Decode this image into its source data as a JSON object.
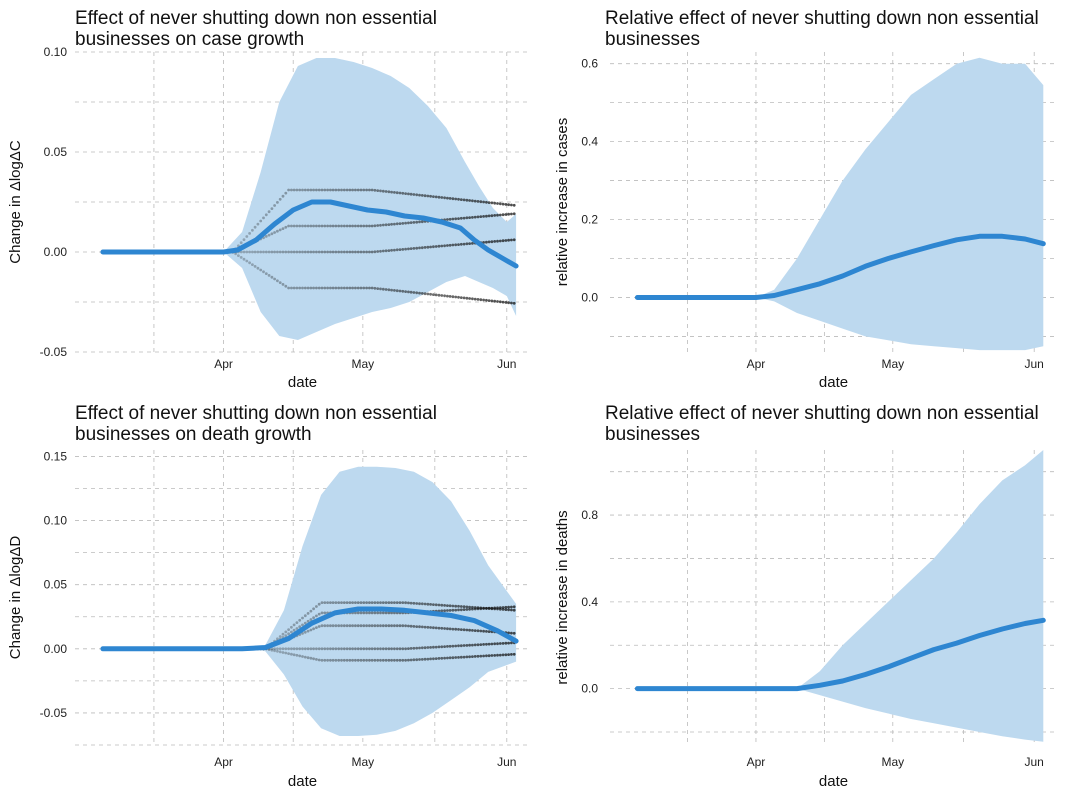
{
  "colors": {
    "band": "#bdd9ef",
    "line": "#2e86d1",
    "grid": "#bbbbbb",
    "dots": "#111111"
  },
  "chart_data": [
    {
      "type": "line",
      "title_lines": [
        "Effect of never shutting down non essential",
        "businesses on case growth"
      ],
      "xlabel": "date",
      "ylabel": "Change in ΔlogΔC",
      "xlim": [
        "2020-02-29",
        "2020-06-06"
      ],
      "ylim": [
        -0.05,
        0.1
      ],
      "yticks": [
        -0.05,
        0.0,
        0.05,
        0.1
      ],
      "ytick_labels": [
        "-0.05",
        "0.00",
        "0.05",
        "0.10"
      ],
      "xticks": [
        "2020-04-01",
        "2020-05-01",
        "2020-06-01"
      ],
      "xtick_labels": [
        "Apr",
        "May",
        "Jun"
      ],
      "grid": true,
      "series": [
        {
          "kind": "line",
          "x": [
            "2020-03-06",
            "2020-03-15",
            "2020-03-25",
            "2020-04-01",
            "2020-04-04",
            "2020-04-08",
            "2020-04-12",
            "2020-04-16",
            "2020-04-20",
            "2020-04-24",
            "2020-04-28",
            "2020-05-02",
            "2020-05-06",
            "2020-05-10",
            "2020-05-14",
            "2020-05-18",
            "2020-05-22",
            "2020-05-25",
            "2020-05-28",
            "2020-05-31",
            "2020-06-03"
          ],
          "y": [
            0,
            0,
            0,
            0,
            0.001,
            0.006,
            0.014,
            0.021,
            0.025,
            0.025,
            0.023,
            0.021,
            0.02,
            0.018,
            0.017,
            0.015,
            0.012,
            0.006,
            0.001,
            -0.003,
            -0.007
          ]
        },
        {
          "kind": "band",
          "x": [
            "2020-03-06",
            "2020-03-25",
            "2020-04-01",
            "2020-04-05",
            "2020-04-09",
            "2020-04-13",
            "2020-04-17",
            "2020-04-21",
            "2020-04-25",
            "2020-04-29",
            "2020-05-03",
            "2020-05-07",
            "2020-05-11",
            "2020-05-15",
            "2020-05-19",
            "2020-05-23",
            "2020-05-26",
            "2020-05-29",
            "2020-06-01",
            "2020-06-03"
          ],
          "lower": [
            0,
            0,
            0,
            -0.008,
            -0.03,
            -0.042,
            -0.044,
            -0.04,
            -0.036,
            -0.033,
            -0.03,
            -0.028,
            -0.025,
            -0.02,
            -0.015,
            -0.012,
            -0.015,
            -0.018,
            -0.022,
            -0.032
          ],
          "upper": [
            0,
            0,
            0,
            0.01,
            0.04,
            0.075,
            0.093,
            0.097,
            0.097,
            0.095,
            0.092,
            0.088,
            0.082,
            0.073,
            0.062,
            0.045,
            0.033,
            0.022,
            0.015,
            0.019
          ]
        }
      ],
      "dot_levels": [
        0.0,
        0.031,
        0.013,
        -0.018
      ]
    },
    {
      "type": "line",
      "title_lines": [
        "Relative effect of never shutting down non essential",
        "businesses"
      ],
      "xlabel": "date",
      "ylabel": "relative increase in cases",
      "xlim": [
        "2020-02-29",
        "2020-06-06"
      ],
      "ylim": [
        -0.14,
        0.63
      ],
      "yticks": [
        0.0,
        0.2,
        0.4,
        0.6
      ],
      "ytick_labels": [
        "0.0",
        "0.2",
        "0.4",
        "0.6"
      ],
      "xticks": [
        "2020-04-01",
        "2020-05-01",
        "2020-06-01"
      ],
      "xtick_labels": [
        "Apr",
        "May",
        "Jun"
      ],
      "grid": true,
      "series": [
        {
          "kind": "line",
          "x": [
            "2020-03-06",
            "2020-03-20",
            "2020-04-01",
            "2020-04-05",
            "2020-04-10",
            "2020-04-15",
            "2020-04-20",
            "2020-04-25",
            "2020-04-30",
            "2020-05-05",
            "2020-05-10",
            "2020-05-15",
            "2020-05-20",
            "2020-05-25",
            "2020-05-30",
            "2020-06-03"
          ],
          "y": [
            0,
            0,
            0,
            0.005,
            0.02,
            0.035,
            0.055,
            0.08,
            0.1,
            0.117,
            0.133,
            0.148,
            0.157,
            0.157,
            0.15,
            0.138
          ]
        },
        {
          "kind": "band",
          "x": [
            "2020-03-06",
            "2020-03-20",
            "2020-04-01",
            "2020-04-05",
            "2020-04-10",
            "2020-04-15",
            "2020-04-20",
            "2020-04-25",
            "2020-04-30",
            "2020-05-05",
            "2020-05-10",
            "2020-05-15",
            "2020-05-20",
            "2020-05-25",
            "2020-05-30",
            "2020-06-03"
          ],
          "lower": [
            0,
            0,
            0,
            -0.01,
            -0.04,
            -0.06,
            -0.08,
            -0.1,
            -0.11,
            -0.12,
            -0.125,
            -0.13,
            -0.135,
            -0.135,
            -0.135,
            -0.125
          ],
          "upper": [
            0,
            0,
            0,
            0.02,
            0.1,
            0.2,
            0.3,
            0.38,
            0.45,
            0.52,
            0.56,
            0.6,
            0.615,
            0.6,
            0.6,
            0.545
          ]
        }
      ]
    },
    {
      "type": "line",
      "title_lines": [
        "Effect of never shutting down non essential",
        "businesses on death growth"
      ],
      "xlabel": "date",
      "ylabel": "Change in ΔlogΔD",
      "xlim": [
        "2020-02-29",
        "2020-06-06"
      ],
      "ylim": [
        -0.075,
        0.155
      ],
      "yticks": [
        -0.05,
        0.0,
        0.05,
        0.1,
        0.15
      ],
      "ytick_labels": [
        "-0.05",
        "0.00",
        "0.05",
        "0.10",
        "0.15"
      ],
      "xticks": [
        "2020-04-01",
        "2020-05-01",
        "2020-06-01"
      ],
      "xtick_labels": [
        "Apr",
        "May",
        "Jun"
      ],
      "grid": true,
      "series": [
        {
          "kind": "line",
          "x": [
            "2020-03-06",
            "2020-03-20",
            "2020-04-05",
            "2020-04-10",
            "2020-04-15",
            "2020-04-20",
            "2020-04-25",
            "2020-04-30",
            "2020-05-05",
            "2020-05-10",
            "2020-05-15",
            "2020-05-20",
            "2020-05-25",
            "2020-05-30",
            "2020-06-03"
          ],
          "y": [
            0,
            0,
            0,
            0.001,
            0.008,
            0.02,
            0.028,
            0.031,
            0.031,
            0.03,
            0.028,
            0.026,
            0.022,
            0.014,
            0.006
          ]
        },
        {
          "kind": "band",
          "x": [
            "2020-03-06",
            "2020-04-08",
            "2020-04-10",
            "2020-04-14",
            "2020-04-18",
            "2020-04-22",
            "2020-04-26",
            "2020-04-30",
            "2020-05-04",
            "2020-05-08",
            "2020-05-12",
            "2020-05-16",
            "2020-05-20",
            "2020-05-24",
            "2020-05-28",
            "2020-06-03"
          ],
          "lower": [
            0,
            0,
            -0.002,
            -0.02,
            -0.045,
            -0.062,
            -0.068,
            -0.068,
            -0.067,
            -0.064,
            -0.058,
            -0.05,
            -0.04,
            -0.03,
            -0.018,
            -0.01
          ],
          "upper": [
            0,
            0,
            0.003,
            0.03,
            0.08,
            0.12,
            0.138,
            0.142,
            0.142,
            0.141,
            0.138,
            0.13,
            0.115,
            0.092,
            0.065,
            0.035
          ]
        }
      ],
      "dot_levels": [
        0.0,
        0.036,
        0.028,
        0.018,
        -0.009
      ]
    },
    {
      "type": "line",
      "title_lines": [
        "Relative effect of never shutting down non essential",
        "businesses"
      ],
      "xlabel": "date",
      "ylabel": "relative increase in deaths",
      "xlim": [
        "2020-02-29",
        "2020-06-06"
      ],
      "ylim": [
        -0.26,
        1.1
      ],
      "yticks": [
        0.0,
        0.4,
        0.8
      ],
      "ytick_labels": [
        "0.0",
        "0.4",
        "0.8"
      ],
      "xticks": [
        "2020-04-01",
        "2020-05-01",
        "2020-06-01"
      ],
      "xtick_labels": [
        "Apr",
        "May",
        "Jun"
      ],
      "grid": true,
      "series": [
        {
          "kind": "line",
          "x": [
            "2020-03-06",
            "2020-03-25",
            "2020-04-10",
            "2020-04-15",
            "2020-04-20",
            "2020-04-25",
            "2020-04-30",
            "2020-05-05",
            "2020-05-10",
            "2020-05-15",
            "2020-05-20",
            "2020-05-25",
            "2020-05-30",
            "2020-06-03"
          ],
          "y": [
            0,
            0,
            0,
            0.015,
            0.035,
            0.065,
            0.1,
            0.14,
            0.18,
            0.21,
            0.245,
            0.275,
            0.3,
            0.315
          ]
        },
        {
          "kind": "band",
          "x": [
            "2020-03-06",
            "2020-03-25",
            "2020-04-10",
            "2020-04-15",
            "2020-04-20",
            "2020-04-25",
            "2020-04-30",
            "2020-05-05",
            "2020-05-10",
            "2020-05-15",
            "2020-05-20",
            "2020-05-25",
            "2020-05-30",
            "2020-06-03"
          ],
          "lower": [
            0,
            0,
            0,
            -0.03,
            -0.06,
            -0.09,
            -0.115,
            -0.14,
            -0.16,
            -0.18,
            -0.2,
            -0.22,
            -0.235,
            -0.245
          ],
          "upper": [
            0,
            0,
            0,
            0.08,
            0.2,
            0.3,
            0.4,
            0.5,
            0.6,
            0.72,
            0.85,
            0.96,
            1.03,
            1.1
          ]
        }
      ]
    }
  ]
}
